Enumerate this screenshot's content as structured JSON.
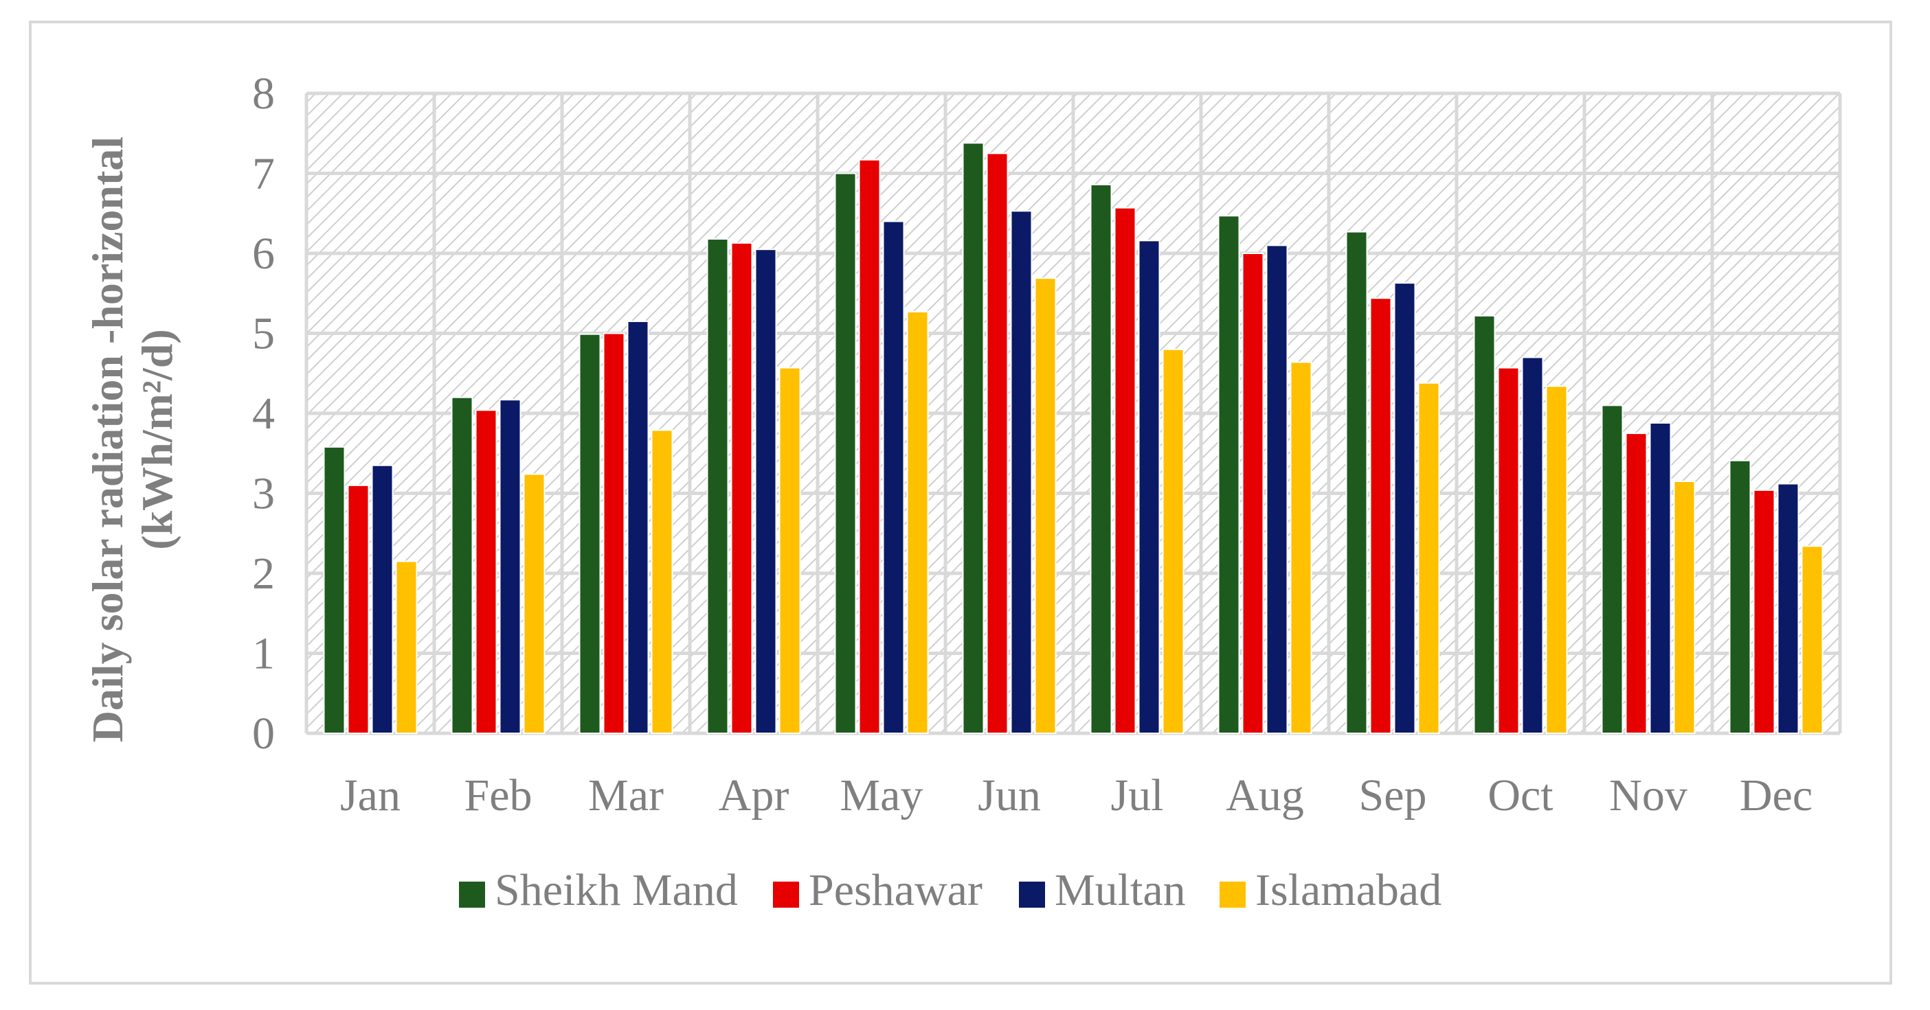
{
  "chart_data": {
    "type": "bar",
    "title": "",
    "xlabel": "",
    "ylabel_line1": "Daily solar radiation -horizontal",
    "ylabel_line2": "(kWh/m²/d)",
    "ylim": [
      0,
      8
    ],
    "yticks": [
      "0",
      "1",
      "2",
      "3",
      "4",
      "5",
      "6",
      "7",
      "8"
    ],
    "grid": true,
    "legend_position": "bottom",
    "categories": [
      "Jan",
      "Feb",
      "Mar",
      "Apr",
      "May",
      "Jun",
      "Jul",
      "Aug",
      "Sep",
      "Oct",
      "Nov",
      "Dec"
    ],
    "series": [
      {
        "name": "Sheikh Mand",
        "color": "#1e5a1e",
        "values": [
          3.58,
          4.2,
          4.99,
          6.18,
          7.0,
          7.38,
          6.86,
          6.47,
          6.27,
          5.22,
          4.1,
          3.41
        ]
      },
      {
        "name": "Peshawar",
        "color": "#e60000",
        "values": [
          3.1,
          4.04,
          5.0,
          6.13,
          7.17,
          7.25,
          6.57,
          6.0,
          5.44,
          4.57,
          3.75,
          3.04
        ]
      },
      {
        "name": "Multan",
        "color": "#0b1a66",
        "values": [
          3.35,
          4.17,
          5.15,
          6.05,
          6.4,
          6.53,
          6.16,
          6.1,
          5.63,
          4.7,
          3.88,
          3.12
        ]
      },
      {
        "name": "Islamabad",
        "color": "#ffc000",
        "values": [
          2.15,
          3.24,
          3.79,
          4.57,
          5.27,
          5.69,
          4.8,
          4.64,
          4.38,
          4.34,
          3.15,
          2.34
        ]
      }
    ]
  }
}
